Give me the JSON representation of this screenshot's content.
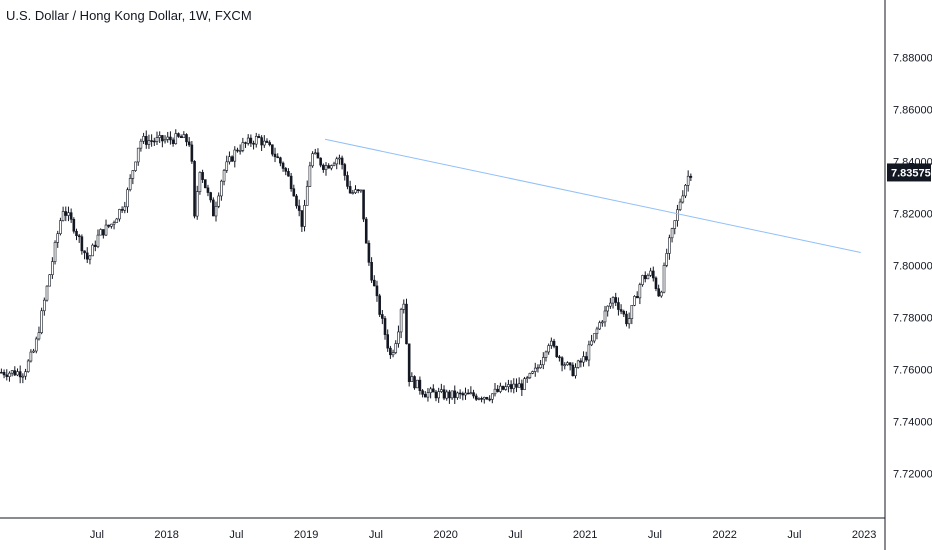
{
  "header": {
    "title": "U.S. Dollar / Hong Kong Dollar, 1W, FXCM"
  },
  "colors": {
    "candle": "#131722",
    "trendline": "#90bff9",
    "axis": "#131722",
    "price_tag_bg": "#131722"
  },
  "chart_data": {
    "type": "candlestick",
    "title": "U.S. Dollar / Hong Kong Dollar, 1W, FXCM",
    "xlabel": "",
    "ylabel": "",
    "ylim": [
      7.703,
      7.902
    ],
    "x_ticks": [
      "Jul",
      "2018",
      "Jul",
      "2019",
      "Jul",
      "2020",
      "Jul",
      "2021",
      "Jul",
      "2022",
      "Jul",
      "2023"
    ],
    "y_ticks": [
      "7.88000",
      "7.86000",
      "7.84000",
      "7.82000",
      "7.80000",
      "7.78000",
      "7.76000",
      "7.74000",
      "7.72000"
    ],
    "last_price": "7.83575",
    "grid": false,
    "series": [
      {
        "path_points": [
          [
            2017.42,
            7.759
          ],
          [
            2017.5,
            7.768
          ],
          [
            2017.6,
            7.795
          ],
          [
            2017.7,
            7.822
          ],
          [
            2017.78,
            7.815
          ],
          [
            2017.88,
            7.802
          ],
          [
            2017.96,
            7.812
          ],
          [
            2018.05,
            7.816
          ],
          [
            2018.15,
            7.825
          ],
          [
            2018.25,
            7.848
          ],
          [
            2018.4,
            7.848
          ],
          [
            2018.55,
            7.849
          ],
          [
            2018.62,
            7.847
          ],
          [
            2018.64,
            7.815
          ],
          [
            2018.68,
            7.838
          ],
          [
            2018.78,
            7.82
          ],
          [
            2018.85,
            7.836
          ],
          [
            2018.95,
            7.845
          ],
          [
            2019.1,
            7.849
          ],
          [
            2019.2,
            7.844
          ],
          [
            2019.28,
            7.838
          ],
          [
            2019.35,
            7.83
          ],
          [
            2019.42,
            7.815
          ],
          [
            2019.48,
            7.843
          ],
          [
            2019.58,
            7.838
          ],
          [
            2019.68,
            7.842
          ],
          [
            2019.76,
            7.828
          ],
          [
            2019.84,
            7.828
          ],
          [
            2019.88,
            7.805
          ],
          [
            2019.95,
            7.787
          ],
          [
            2020.0,
            7.776
          ],
          [
            2020.05,
            7.765
          ],
          [
            2020.1,
            7.774
          ],
          [
            2020.14,
            7.79
          ],
          [
            2020.18,
            7.757
          ],
          [
            2020.3,
            7.751
          ],
          [
            2020.5,
            7.75
          ],
          [
            2020.75,
            7.75
          ],
          [
            2020.88,
            7.753
          ],
          [
            2021.0,
            7.754
          ],
          [
            2021.1,
            7.76
          ],
          [
            2021.18,
            7.771
          ],
          [
            2021.26,
            7.765
          ],
          [
            2021.35,
            7.759
          ],
          [
            2021.45,
            7.765
          ],
          [
            2021.55,
            7.778
          ],
          [
            2021.65,
            7.788
          ],
          [
            2021.75,
            7.778
          ],
          [
            2021.85,
            7.795
          ],
          [
            2021.92,
            7.797
          ],
          [
            2021.98,
            7.788
          ],
          [
            2022.03,
            7.805
          ],
          [
            2022.08,
            7.815
          ],
          [
            2022.13,
            7.826
          ],
          [
            2022.18,
            7.834
          ],
          [
            2022.205,
            7.836
          ]
        ]
      }
    ],
    "trendline": {
      "start": [
        2019.58,
        7.8485
      ],
      "end": [
        2023.42,
        7.805
      ]
    }
  }
}
